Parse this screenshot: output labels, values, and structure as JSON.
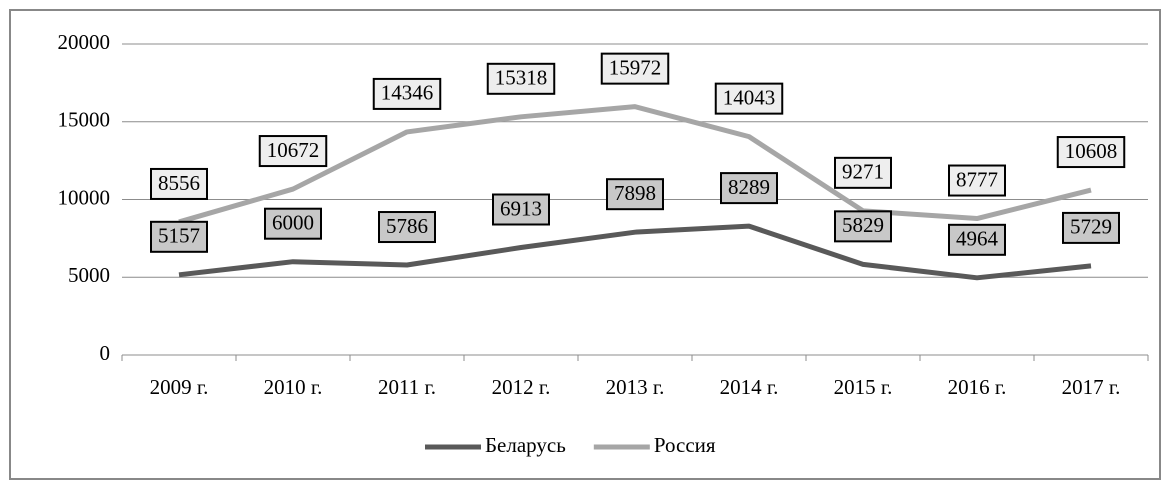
{
  "chart_data": {
    "type": "line",
    "categories": [
      "2009 г.",
      "2010 г.",
      "2011 г.",
      "2012 г.",
      "2013 г.",
      "2014 г.",
      "2015 г.",
      "2016 г.",
      "2017 г."
    ],
    "series": [
      {
        "name": "Беларусь",
        "color": "#595959",
        "label_fill": "#c8c8c8",
        "values": [
          5157,
          6000,
          5786,
          6913,
          7898,
          8289,
          5829,
          4964,
          5729
        ]
      },
      {
        "name": "Россия",
        "color": "#a6a6a6",
        "label_fill": "#eeeeee",
        "values": [
          8556,
          10672,
          14346,
          15318,
          15972,
          14043,
          9271,
          8777,
          10608
        ]
      }
    ],
    "ylim": [
      0,
      20000
    ],
    "yticks": [
      0,
      5000,
      10000,
      15000,
      20000
    ],
    "grid": true,
    "legend": "bottom"
  }
}
